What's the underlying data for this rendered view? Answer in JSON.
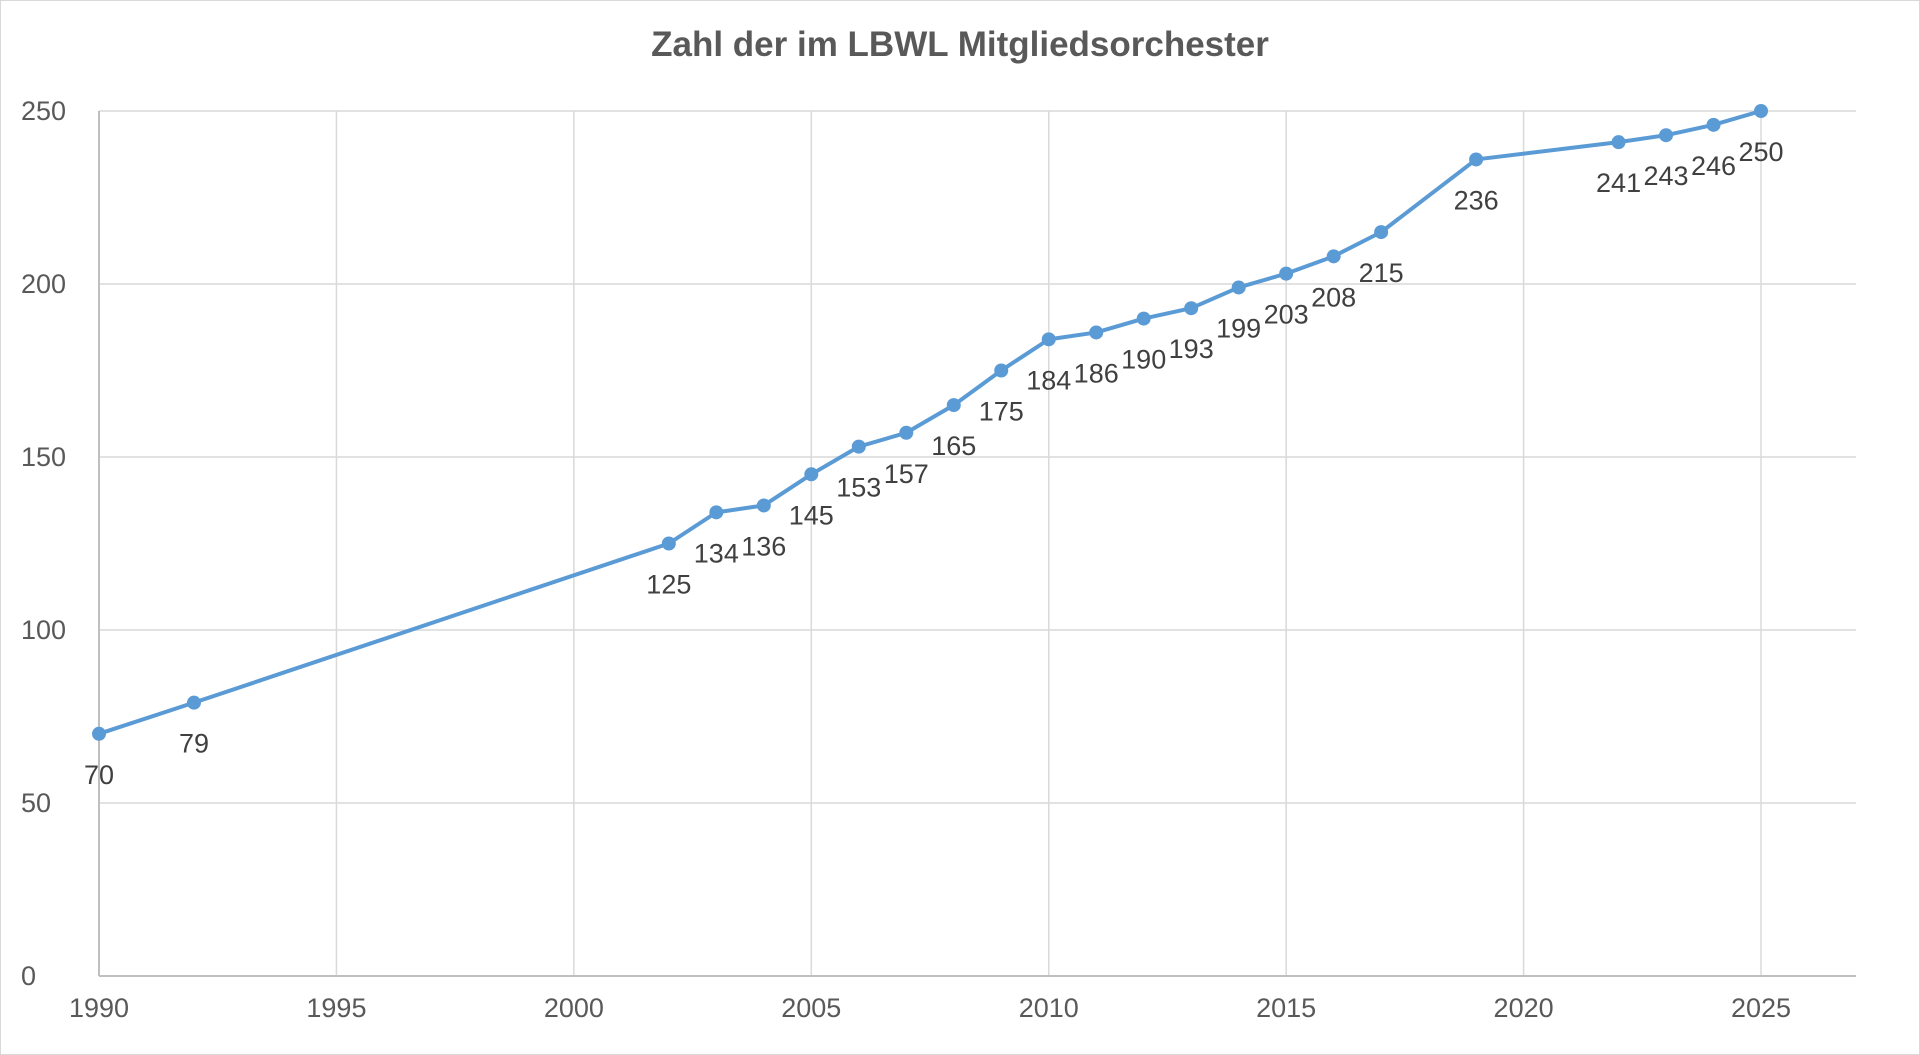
{
  "chart_data": {
    "type": "line",
    "title": "Zahl der im LBWL Mitgliedsorchester",
    "xlabel": "",
    "ylabel": "",
    "xlim": [
      1990,
      2027
    ],
    "ylim": [
      0,
      250
    ],
    "x_ticks": [
      1990,
      1995,
      2000,
      2005,
      2010,
      2015,
      2020,
      2025
    ],
    "y_ticks": [
      0,
      50,
      100,
      150,
      200,
      250
    ],
    "grid": true,
    "legend": "none",
    "series_color": "#5b9bd5",
    "series": [
      {
        "x": [
          1990,
          1992,
          2002,
          2003,
          2004,
          2005,
          2006,
          2007,
          2008,
          2009,
          2010,
          2011,
          2012,
          2013,
          2014,
          2015,
          2016,
          2017,
          2019,
          2022,
          2023,
          2024,
          2025
        ],
        "values": [
          70,
          79,
          125,
          134,
          136,
          145,
          153,
          157,
          165,
          175,
          184,
          186,
          190,
          193,
          199,
          203,
          208,
          215,
          236,
          241,
          243,
          246,
          250
        ]
      }
    ]
  }
}
